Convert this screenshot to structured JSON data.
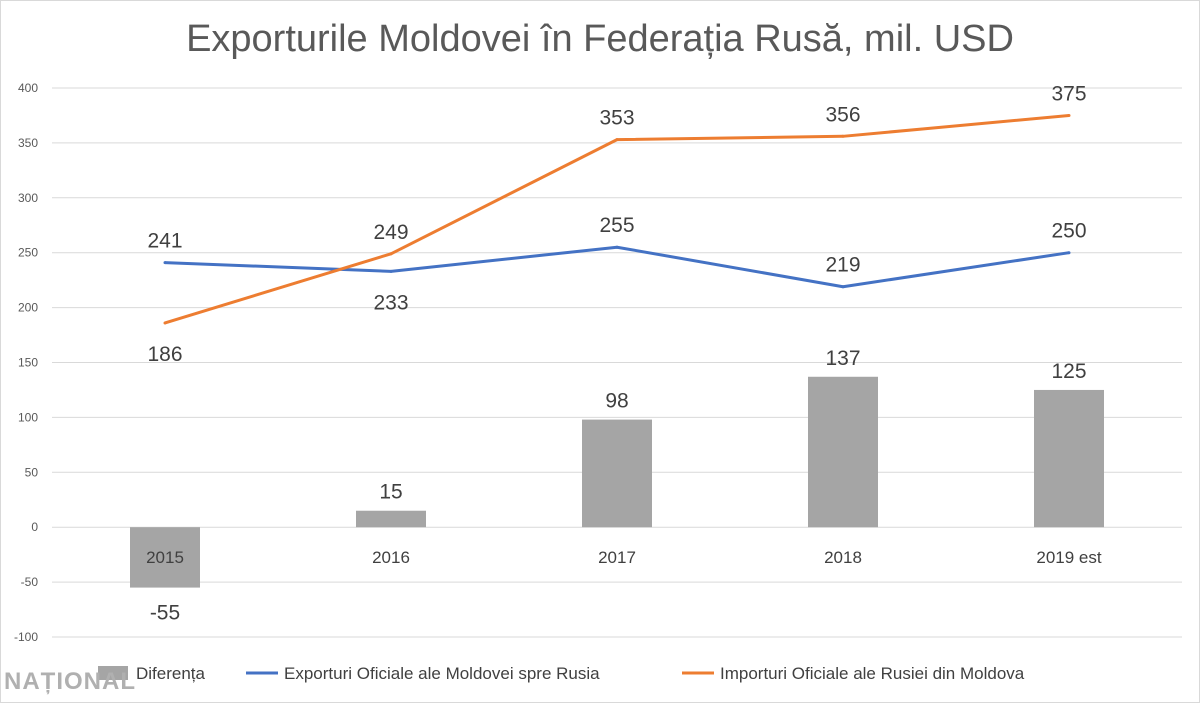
{
  "chart_data": {
    "type": "bar+line",
    "title": "Exporturile Moldovei în Federația Rusă, mil. USD",
    "categories": [
      "2015",
      "2016",
      "2017",
      "2018",
      "2019 est"
    ],
    "ylim": [
      -100,
      400
    ],
    "yticks": [
      -100,
      -50,
      0,
      50,
      100,
      150,
      200,
      250,
      300,
      350,
      400
    ],
    "grid": true,
    "legend_position": "bottom",
    "series": [
      {
        "name": "Diferența",
        "kind": "bar",
        "color": "#a5a5a5",
        "values": [
          -55,
          15,
          98,
          137,
          125
        ]
      },
      {
        "name": "Exporturi Oficiale ale Moldovei spre Rusia",
        "kind": "line",
        "color": "#4472c4",
        "values": [
          241,
          233,
          255,
          219,
          250
        ]
      },
      {
        "name": "Importuri Oficiale ale Rusiei din Moldova",
        "kind": "line",
        "color": "#ed7d31",
        "values": [
          186,
          249,
          353,
          356,
          375
        ]
      }
    ]
  },
  "watermark": "NAȚIONAL"
}
